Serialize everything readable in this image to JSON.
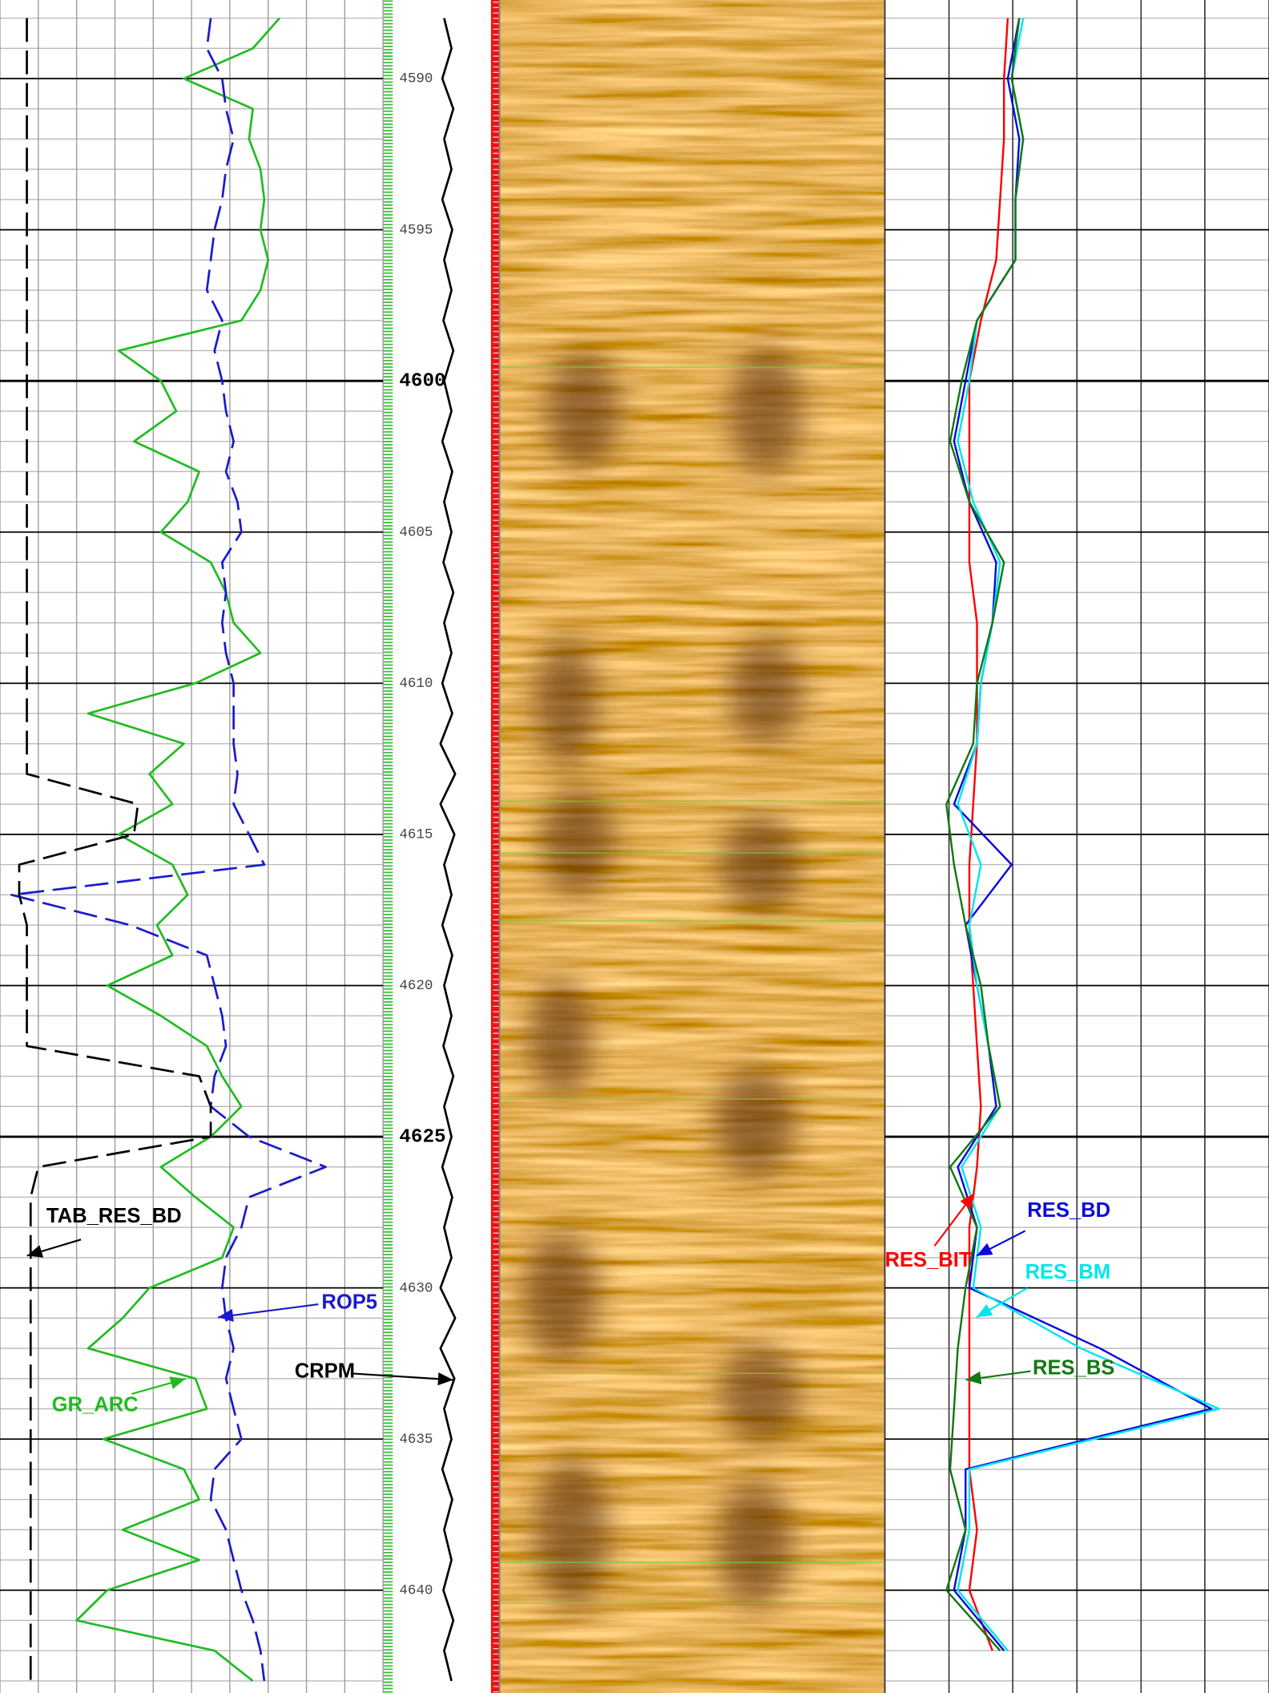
{
  "chart_data": [
    {
      "type": "line",
      "ylim": [
        4587.4,
        4643.4
      ],
      "invert_y": true,
      "xlim": [
        0,
        1
      ],
      "xticks": [
        0,
        0.1,
        0.2,
        0.3,
        0.4,
        0.5,
        0.6,
        0.7,
        0.8,
        0.9,
        1
      ],
      "depth": [
        4588,
        4589,
        4590,
        4591,
        4592,
        4593,
        4594,
        4595,
        4596,
        4597,
        4598,
        4599,
        4600,
        4601,
        4602,
        4603,
        4604,
        4605,
        4606,
        4607,
        4608,
        4609,
        4610,
        4611,
        4612,
        4613,
        4614,
        4615,
        4616,
        4617,
        4618,
        4619,
        4620,
        4621,
        4622,
        4623,
        4624,
        4625,
        4626,
        4627,
        4628,
        4629,
        4630,
        4631,
        4632,
        4633,
        4634,
        4635,
        4636,
        4637,
        4638,
        4639,
        4640,
        4641,
        4642,
        4643
      ],
      "series": [
        {
          "name": "GR_ARC",
          "color": "#22bb22",
          "dashed": false,
          "values": [
            0.73,
            0.66,
            0.48,
            0.66,
            0.65,
            0.68,
            0.69,
            0.68,
            0.7,
            0.68,
            0.63,
            0.31,
            0.42,
            0.46,
            0.35,
            0.52,
            0.49,
            0.42,
            0.55,
            0.59,
            0.61,
            0.68,
            0.51,
            0.23,
            0.48,
            0.39,
            0.45,
            0.31,
            0.45,
            0.49,
            0.41,
            0.45,
            0.28,
            0.42,
            0.54,
            0.58,
            0.63,
            0.55,
            0.42,
            0.51,
            0.61,
            0.58,
            0.39,
            0.32,
            0.23,
            0.51,
            0.54,
            0.27,
            0.48,
            0.52,
            0.32,
            0.52,
            0.28,
            0.2,
            0.56,
            0.66
          ]
        },
        {
          "name": "ROP5",
          "color": "#1a1acc",
          "dashed": true,
          "values": [
            0.55,
            0.54,
            0.58,
            0.59,
            0.61,
            0.59,
            0.58,
            0.56,
            0.55,
            0.54,
            0.58,
            0.56,
            0.58,
            0.59,
            0.61,
            0.59,
            0.62,
            0.63,
            0.58,
            0.59,
            0.58,
            0.59,
            0.61,
            0.61,
            0.61,
            0.62,
            0.61,
            0.65,
            0.69,
            0.03,
            0.34,
            0.54,
            0.56,
            0.58,
            0.59,
            0.56,
            0.55,
            0.65,
            0.85,
            0.65,
            0.63,
            0.59,
            0.58,
            0.59,
            0.61,
            0.59,
            0.61,
            0.63,
            0.56,
            0.55,
            0.59,
            0.61,
            0.63,
            0.66,
            0.68,
            0.69
          ]
        },
        {
          "name": "TAB_RES_BD",
          "color": "#000000",
          "dashed": true,
          "values": [
            0.07,
            0.07,
            0.07,
            0.07,
            0.07,
            0.07,
            0.07,
            0.07,
            0.07,
            0.07,
            0.07,
            0.07,
            0.07,
            0.07,
            0.07,
            0.07,
            0.07,
            0.07,
            0.07,
            0.07,
            0.07,
            0.07,
            0.07,
            0.07,
            0.07,
            0.07,
            0.36,
            0.35,
            0.05,
            0.05,
            0.07,
            0.07,
            0.07,
            0.07,
            0.07,
            0.52,
            0.55,
            0.55,
            0.1,
            0.08,
            0.08,
            0.08,
            0.08,
            0.08,
            0.08,
            0.08,
            0.08,
            0.08,
            0.08,
            0.08,
            0.08,
            0.08,
            0.08,
            0.08,
            0.08,
            0.08
          ]
        }
      ]
    },
    {
      "type": "line",
      "ylim": [
        4587.4,
        4643.4
      ],
      "invert_y": true,
      "xlim": [
        0,
        1
      ],
      "yticks": [
        4590,
        4595,
        4600,
        4605,
        4610,
        4615,
        4620,
        4625,
        4630,
        4635,
        4640
      ],
      "depth": [
        4588,
        4589,
        4590,
        4591,
        4592,
        4593,
        4594,
        4595,
        4596,
        4597,
        4598,
        4599,
        4600,
        4601,
        4602,
        4603,
        4604,
        4605,
        4606,
        4607,
        4608,
        4609,
        4610,
        4611,
        4612,
        4613,
        4614,
        4615,
        4616,
        4617,
        4618,
        4619,
        4620,
        4621,
        4622,
        4623,
        4624,
        4625,
        4626,
        4627,
        4628,
        4629,
        4630,
        4631,
        4632,
        4633,
        4634,
        4635,
        4636,
        4637,
        4638,
        4639,
        4640,
        4641,
        4642,
        4643
      ],
      "series": [
        {
          "name": "CRPM",
          "color": "#000000",
          "dashed": false,
          "values": [
            0.4,
            0.6,
            0.35,
            0.65,
            0.4,
            0.6,
            0.35,
            0.62,
            0.4,
            0.6,
            0.38,
            0.65,
            0.4,
            0.6,
            0.35,
            0.62,
            0.4,
            0.6,
            0.38,
            0.65,
            0.4,
            0.6,
            0.35,
            0.62,
            0.3,
            0.7,
            0.3,
            0.68,
            0.4,
            0.6,
            0.35,
            0.62,
            0.4,
            0.6,
            0.38,
            0.65,
            0.4,
            0.6,
            0.35,
            0.62,
            0.4,
            0.6,
            0.3,
            0.7,
            0.3,
            0.68,
            0.4,
            0.6,
            0.35,
            0.62,
            0.4,
            0.6,
            0.38,
            0.65,
            0.4,
            0.6
          ]
        }
      ]
    },
    {
      "type": "line",
      "ylim": [
        4587.4,
        4643.4
      ],
      "invert_y": true,
      "xlim": [
        0,
        1
      ],
      "xticks": [
        0,
        0.167,
        0.333,
        0.5,
        0.667,
        0.833,
        1
      ],
      "depth": [
        4588,
        4590,
        4592,
        4594,
        4596,
        4598,
        4600,
        4602,
        4604,
        4606,
        4608,
        4610,
        4612,
        4614,
        4616,
        4618,
        4620,
        4622,
        4624,
        4626,
        4628,
        4630,
        4632,
        4634,
        4636,
        4638,
        4640,
        4642
      ],
      "series": [
        {
          "name": "RES_BIT",
          "color": "#ff0000",
          "dashed": false,
          "values": [
            0.32,
            0.31,
            0.31,
            0.3,
            0.29,
            0.25,
            0.22,
            0.22,
            0.22,
            0.22,
            0.24,
            0.24,
            0.24,
            0.23,
            0.22,
            0.22,
            0.23,
            0.24,
            0.25,
            0.24,
            0.22,
            0.22,
            0.22,
            0.22,
            0.22,
            0.24,
            0.22,
            0.28
          ]
        },
        {
          "name": "RES_BD",
          "color": "#0a0adc",
          "dashed": false,
          "values": [
            0.35,
            0.32,
            0.35,
            0.34,
            0.34,
            0.24,
            0.21,
            0.18,
            0.22,
            0.29,
            0.28,
            0.25,
            0.24,
            0.18,
            0.33,
            0.21,
            0.24,
            0.27,
            0.29,
            0.19,
            0.24,
            0.22,
            0.56,
            0.85,
            0.21,
            0.21,
            0.18,
            0.31
          ]
        },
        {
          "name": "RES_BM",
          "color": "#00e5ee",
          "dashed": false,
          "values": [
            0.36,
            0.33,
            0.36,
            0.34,
            0.34,
            0.24,
            0.22,
            0.19,
            0.23,
            0.3,
            0.28,
            0.25,
            0.24,
            0.19,
            0.25,
            0.22,
            0.24,
            0.27,
            0.3,
            0.2,
            0.25,
            0.23,
            0.51,
            0.87,
            0.22,
            0.22,
            0.19,
            0.32
          ]
        },
        {
          "name": "RES_BS",
          "color": "#127812",
          "dashed": false,
          "values": [
            0.35,
            0.33,
            0.36,
            0.34,
            0.34,
            0.24,
            0.2,
            0.17,
            0.22,
            0.31,
            0.28,
            0.24,
            0.23,
            0.16,
            0.18,
            0.21,
            0.25,
            0.27,
            0.3,
            0.17,
            0.24,
            0.21,
            0.19,
            0.18,
            0.17,
            0.21,
            0.16,
            0.3
          ]
        }
      ]
    }
  ]
}
